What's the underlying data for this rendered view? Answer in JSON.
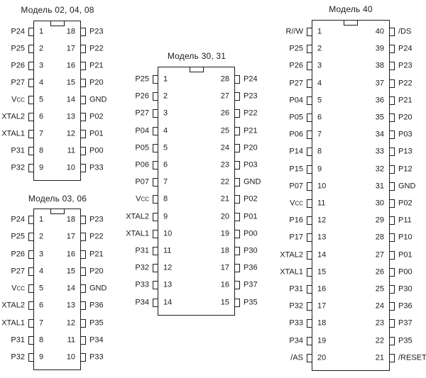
{
  "page": {
    "background_color": "#ffffff",
    "ink_color": "#1b1b1b",
    "description": "DIP package pinout diagrams for microcontroller models"
  },
  "chips": [
    {
      "id": "model-02-04-08",
      "title": "Модель 02, 04, 08",
      "pin_count": 18,
      "pins_left": [
        {
          "num": "1",
          "label": "P24"
        },
        {
          "num": "2",
          "label": "P25"
        },
        {
          "num": "3",
          "label": "P26"
        },
        {
          "num": "4",
          "label": "P27"
        },
        {
          "num": "5",
          "label": "Vcc"
        },
        {
          "num": "6",
          "label": "XTAL2"
        },
        {
          "num": "7",
          "label": "XTAL1"
        },
        {
          "num": "8",
          "label": "P31"
        },
        {
          "num": "9",
          "label": "P32"
        }
      ],
      "pins_right": [
        {
          "num": "18",
          "label": "P23"
        },
        {
          "num": "17",
          "label": "P22"
        },
        {
          "num": "16",
          "label": "P21"
        },
        {
          "num": "15",
          "label": "P20"
        },
        {
          "num": "14",
          "label": "GND"
        },
        {
          "num": "13",
          "label": "P02"
        },
        {
          "num": "12",
          "label": "P01"
        },
        {
          "num": "11",
          "label": "P00"
        },
        {
          "num": "10",
          "label": "P33"
        }
      ]
    },
    {
      "id": "model-03-06",
      "title": "Модель 03, 06",
      "pin_count": 18,
      "pins_left": [
        {
          "num": "1",
          "label": "P24"
        },
        {
          "num": "2",
          "label": "P25"
        },
        {
          "num": "3",
          "label": "P26"
        },
        {
          "num": "4",
          "label": "P27"
        },
        {
          "num": "5",
          "label": "Vcc"
        },
        {
          "num": "6",
          "label": "XTAL2"
        },
        {
          "num": "7",
          "label": "XTAL1"
        },
        {
          "num": "8",
          "label": "P31"
        },
        {
          "num": "9",
          "label": "P32"
        }
      ],
      "pins_right": [
        {
          "num": "18",
          "label": "P23"
        },
        {
          "num": "17",
          "label": "P22"
        },
        {
          "num": "16",
          "label": "P21"
        },
        {
          "num": "15",
          "label": "P20"
        },
        {
          "num": "14",
          "label": "GND"
        },
        {
          "num": "13",
          "label": "P36"
        },
        {
          "num": "12",
          "label": "P35"
        },
        {
          "num": "11",
          "label": "P34"
        },
        {
          "num": "10",
          "label": "P33"
        }
      ]
    },
    {
      "id": "model-30-31",
      "title": "Модель 30, 31",
      "pin_count": 28,
      "pins_left": [
        {
          "num": "1",
          "label": "P25"
        },
        {
          "num": "2",
          "label": "P26"
        },
        {
          "num": "3",
          "label": "P27"
        },
        {
          "num": "4",
          "label": "P04"
        },
        {
          "num": "5",
          "label": "P05"
        },
        {
          "num": "6",
          "label": "P06"
        },
        {
          "num": "7",
          "label": "P07"
        },
        {
          "num": "8",
          "label": "Vcc"
        },
        {
          "num": "9",
          "label": "XTAL2"
        },
        {
          "num": "10",
          "label": "XTAL1"
        },
        {
          "num": "11",
          "label": "P31"
        },
        {
          "num": "12",
          "label": "P32"
        },
        {
          "num": "13",
          "label": "P33"
        },
        {
          "num": "14",
          "label": "P34"
        }
      ],
      "pins_right": [
        {
          "num": "28",
          "label": "P24"
        },
        {
          "num": "27",
          "label": "P23"
        },
        {
          "num": "26",
          "label": "P22"
        },
        {
          "num": "25",
          "label": "P21"
        },
        {
          "num": "24",
          "label": "P20"
        },
        {
          "num": "23",
          "label": "P03"
        },
        {
          "num": "22",
          "label": "GND"
        },
        {
          "num": "21",
          "label": "P02"
        },
        {
          "num": "20",
          "label": "P01"
        },
        {
          "num": "19",
          "label": "P00"
        },
        {
          "num": "18",
          "label": "P30"
        },
        {
          "num": "17",
          "label": "P36"
        },
        {
          "num": "16",
          "label": "P37"
        },
        {
          "num": "15",
          "label": "P35"
        }
      ]
    },
    {
      "id": "model-40",
      "title": "Модель 40",
      "pin_count": 40,
      "pins_left": [
        {
          "num": "1",
          "label": "R//W"
        },
        {
          "num": "2",
          "label": "P25"
        },
        {
          "num": "3",
          "label": "P26"
        },
        {
          "num": "4",
          "label": "P27"
        },
        {
          "num": "5",
          "label": "P04"
        },
        {
          "num": "6",
          "label": "P05"
        },
        {
          "num": "7",
          "label": "P06"
        },
        {
          "num": "8",
          "label": "P14"
        },
        {
          "num": "9",
          "label": "P15"
        },
        {
          "num": "10",
          "label": "P07"
        },
        {
          "num": "11",
          "label": "Vcc"
        },
        {
          "num": "12",
          "label": "P16"
        },
        {
          "num": "13",
          "label": "P17"
        },
        {
          "num": "14",
          "label": "XTAL2"
        },
        {
          "num": "15",
          "label": "XTAL1"
        },
        {
          "num": "16",
          "label": "P31"
        },
        {
          "num": "17",
          "label": "P32"
        },
        {
          "num": "18",
          "label": "P33"
        },
        {
          "num": "19",
          "label": "P34"
        },
        {
          "num": "20",
          "label": "/AS"
        }
      ],
      "pins_right": [
        {
          "num": "40",
          "label": "/DS"
        },
        {
          "num": "39",
          "label": "P24"
        },
        {
          "num": "38",
          "label": "P23"
        },
        {
          "num": "37",
          "label": "P22"
        },
        {
          "num": "36",
          "label": "P21"
        },
        {
          "num": "35",
          "label": "P20"
        },
        {
          "num": "34",
          "label": "P03"
        },
        {
          "num": "33",
          "label": "P13"
        },
        {
          "num": "32",
          "label": "P12"
        },
        {
          "num": "31",
          "label": "GND"
        },
        {
          "num": "30",
          "label": "P02"
        },
        {
          "num": "29",
          "label": "P11"
        },
        {
          "num": "28",
          "label": "P10"
        },
        {
          "num": "27",
          "label": "P01"
        },
        {
          "num": "26",
          "label": "P00"
        },
        {
          "num": "25",
          "label": "P30"
        },
        {
          "num": "24",
          "label": "P36"
        },
        {
          "num": "23",
          "label": "P37"
        },
        {
          "num": "22",
          "label": "P35"
        },
        {
          "num": "21",
          "label": "/RESET"
        }
      ]
    }
  ]
}
